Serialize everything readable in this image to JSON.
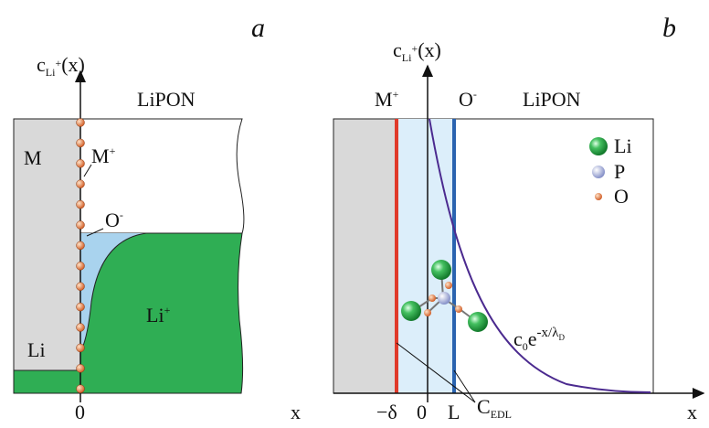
{
  "panel_a": {
    "label": "a",
    "y_axis": {
      "base": "c",
      "sub": "Li",
      "sup": "+",
      "arg": "(x)"
    },
    "x_axis": "x",
    "origin": "0",
    "electrolyte": "LiPON",
    "metal": "M",
    "metal_ion": {
      "base": "M",
      "sup": "+"
    },
    "oxygen_ion": {
      "base": "O",
      "sup": "-"
    },
    "lithium_ion": {
      "base": "Li",
      "sup": "+"
    },
    "lithium": "Li"
  },
  "panel_b": {
    "label": "b",
    "y_axis": {
      "base": "c",
      "sub": "Li",
      "sup": "+",
      "arg": "(x)"
    },
    "x_axis": "x",
    "metal_ion": {
      "base": "M",
      "sup": "+"
    },
    "oxygen_ion": {
      "base": "O",
      "sup": "-"
    },
    "electrolyte": "LiPON",
    "legend": [
      "Li",
      "P",
      "O"
    ],
    "formula": {
      "c": "c",
      "c_sub": "0",
      "e": "e",
      "exp": "-x/λ",
      "exp_sub": "D"
    },
    "ticks": [
      "−δ",
      "0",
      "L"
    ],
    "capacitance": {
      "base": "C",
      "sub": "EDL"
    }
  }
}
